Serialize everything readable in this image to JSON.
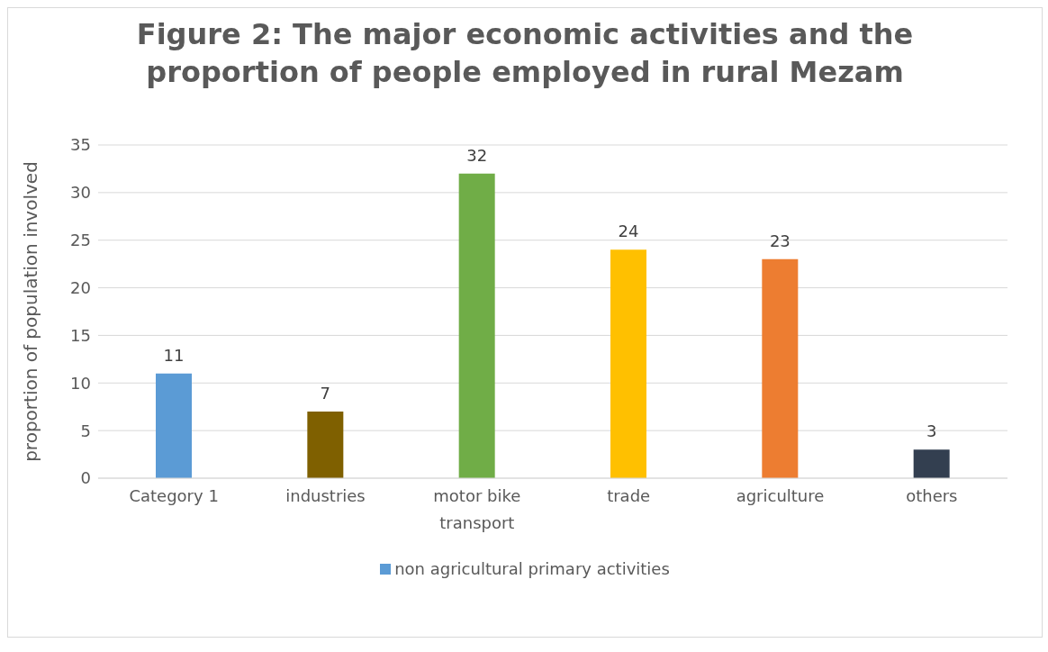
{
  "chart_data": {
    "type": "bar",
    "title": "Figure 2: The major economic activities and the proportion of people employed in rural Mezam",
    "ylabel": "proportion of population involved",
    "categories": [
      "Category 1",
      "industries",
      "motor bike transport",
      "trade",
      "agriculture",
      "others"
    ],
    "series": [
      {
        "name": "non agricultural primary activities",
        "color": "#5b9bd5",
        "colors": [
          "#5b9bd5",
          "#7f6000",
          "#70ad47",
          "#ffc000",
          "#ed7d31",
          "#333f50"
        ],
        "values": [
          11,
          7,
          32,
          24,
          23,
          3
        ]
      }
    ],
    "ylim": [
      0,
      35
    ],
    "yticks": [
      0,
      5,
      10,
      15,
      20,
      25,
      30,
      35
    ],
    "grid": "y",
    "legend": "bottom",
    "data_labels": true
  }
}
